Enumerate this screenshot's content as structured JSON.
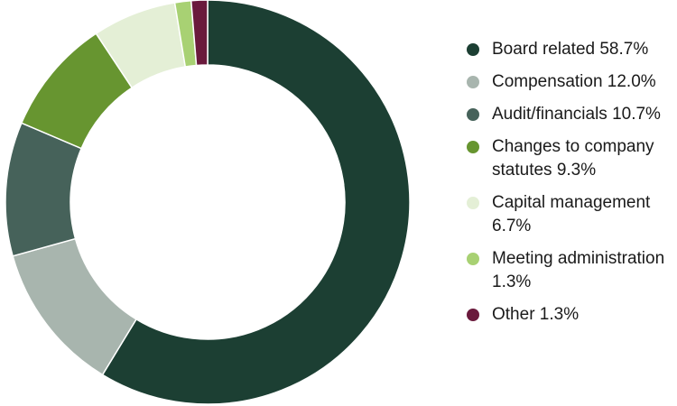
{
  "chart_data": {
    "type": "pie",
    "variant": "donut",
    "title": "",
    "legend_position": "right",
    "slices": [
      {
        "label": "Board related 58.7%",
        "value": 58.7,
        "color": "#1c3f33"
      },
      {
        "label": "Compensation 12.0%",
        "value": 12.0,
        "color": "#a8b5ae"
      },
      {
        "label": "Audit/financials 10.7%",
        "value": 10.7,
        "color": "#46625a"
      },
      {
        "label": "Changes to company statutes 9.3%",
        "value": 9.3,
        "color": "#679530"
      },
      {
        "label": "Capital management 6.7%",
        "value": 6.7,
        "color": "#e4efd6"
      },
      {
        "label": "Meeting administration 1.3%",
        "value": 1.3,
        "color": "#a8d173"
      },
      {
        "label": "Other 1.3%",
        "value": 1.3,
        "color": "#6a1a3c"
      }
    ]
  }
}
